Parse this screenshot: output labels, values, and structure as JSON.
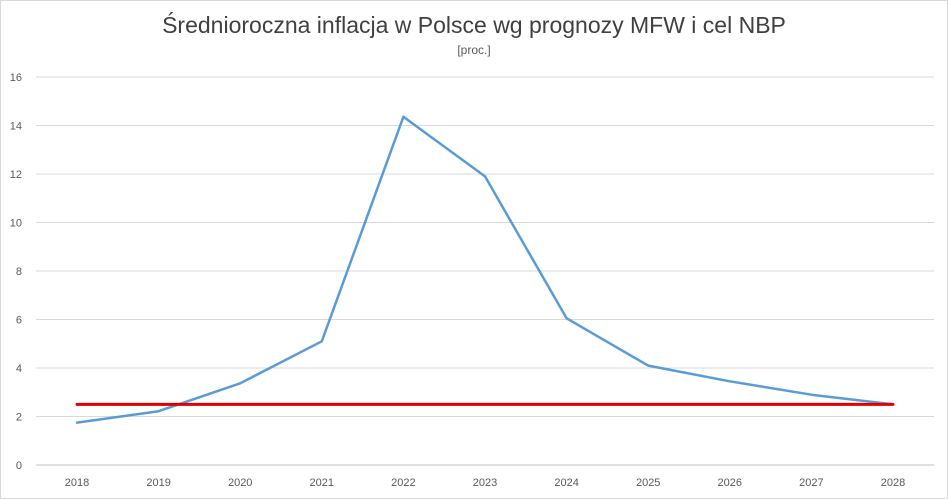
{
  "chart_data": {
    "type": "line",
    "title": "Średnioroczna inflacja w Polsce wg prognozy MFW i cel NBP",
    "subtitle": "[proc.]",
    "xlabel": "",
    "ylabel": "",
    "categories": [
      "2018",
      "2019",
      "2020",
      "2021",
      "2022",
      "2023",
      "2024",
      "2025",
      "2026",
      "2027",
      "2028"
    ],
    "series": [
      {
        "color": "#5b9bd5",
        "values": [
          1.75,
          2.22,
          3.37,
          5.1,
          14.36,
          11.9,
          6.05,
          4.1,
          3.45,
          2.9,
          2.5
        ]
      },
      {
        "color": "#e00000",
        "values": [
          2.5,
          2.5,
          2.5,
          2.5,
          2.5,
          2.5,
          2.5,
          2.5,
          2.5,
          2.5,
          2.5
        ]
      }
    ],
    "ylim": [
      0,
      16
    ],
    "yticks": [
      "0",
      "2",
      "4",
      "6",
      "8",
      "10",
      "12",
      "14",
      "16"
    ],
    "grid": true,
    "legend": "none"
  }
}
